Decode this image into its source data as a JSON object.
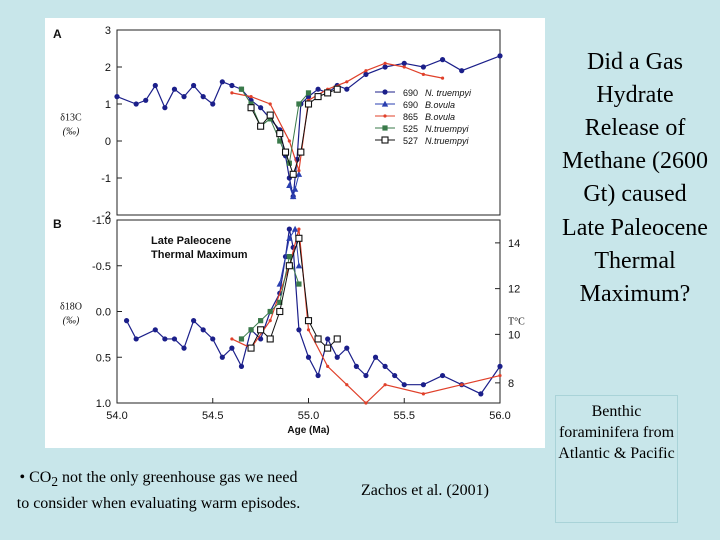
{
  "slide": {
    "title": "Did a Gas Hydrate Release of Methane (2600 Gt) caused Late Paleocene Thermal Maximum?",
    "bullet_prefix": "• CO",
    "bullet_sub": "2",
    "bullet_rest": " not the only greenhouse gas we need to consider when evaluating warm episodes.",
    "citation": "Zachos et al. (2001)",
    "benthic_note": "Benthic foraminifera from Atlantic & Pacific"
  },
  "colors": {
    "navy": "#1b1f8a",
    "blue_triangle": "#2a3fb0",
    "red": "#e0402a",
    "green": "#3a7a4a",
    "black": "#111111"
  },
  "chart_data": [
    {
      "type": "line",
      "panel": "A",
      "ylabel": "δ13C (‰)",
      "xlim": [
        54.0,
        56.0
      ],
      "ylim": [
        -2,
        3
      ],
      "y_ticks": [
        "3",
        "2",
        "1",
        "0",
        "-1",
        "-2"
      ],
      "legend": {
        "placement": "bottom-right",
        "entries": [
          {
            "site": "690",
            "species": "N. truempyi",
            "marker": "circle-filled",
            "color": "navy"
          },
          {
            "site": "690",
            "species": "B.ovula",
            "marker": "triangle-filled",
            "color": "blue_triangle"
          },
          {
            "site": "865",
            "species": "B.ovula",
            "marker": "dot-small",
            "color": "red"
          },
          {
            "site": "525",
            "species": "N.truempyi",
            "marker": "square-filled",
            "color": "green"
          },
          {
            "site": "527",
            "species": "N.truempyi",
            "marker": "square-open",
            "color": "black"
          }
        ]
      },
      "series": [
        {
          "name": "690 N. truempyi",
          "x": [
            54.0,
            54.1,
            54.15,
            54.2,
            54.25,
            54.3,
            54.35,
            54.4,
            54.45,
            54.5,
            54.55,
            54.6,
            54.65,
            54.7,
            54.75,
            54.8,
            54.85,
            54.88,
            54.9,
            54.92,
            54.94,
            54.96,
            55.0,
            55.05,
            55.1,
            55.15,
            55.2,
            55.3,
            55.4,
            55.5,
            55.6,
            55.7,
            55.8,
            56.0
          ],
          "y": [
            1.2,
            1.0,
            1.1,
            1.5,
            0.9,
            1.4,
            1.2,
            1.5,
            1.2,
            1.0,
            1.6,
            1.5,
            1.4,
            1.1,
            0.9,
            0.6,
            0.3,
            -0.4,
            -1.0,
            -1.5,
            -0.5,
            1.0,
            1.2,
            1.4,
            1.3,
            1.5,
            1.4,
            1.8,
            2.0,
            2.1,
            2.0,
            2.2,
            1.9,
            2.3
          ]
        },
        {
          "name": "690 B.ovula",
          "x": [
            54.9,
            54.92,
            54.93,
            54.95
          ],
          "y": [
            -1.2,
            -1.5,
            -1.3,
            -0.9
          ]
        },
        {
          "name": "865 B.ovula",
          "x": [
            54.6,
            54.7,
            54.8,
            54.9,
            54.95,
            55.0,
            55.1,
            55.2,
            55.3,
            55.4,
            55.5,
            55.6,
            55.7
          ],
          "y": [
            1.3,
            1.2,
            1.0,
            0.0,
            -0.8,
            1.1,
            1.4,
            1.6,
            1.9,
            2.1,
            2.0,
            1.8,
            1.7
          ]
        },
        {
          "name": "525 N.truempyi",
          "x": [
            54.65,
            54.7,
            54.75,
            54.8,
            54.85,
            54.9,
            54.95,
            55.0
          ],
          "y": [
            1.4,
            1.0,
            0.4,
            0.6,
            0.0,
            -0.6,
            1.0,
            1.3
          ]
        },
        {
          "name": "527 N.truempyi",
          "x": [
            54.7,
            54.75,
            54.8,
            54.85,
            54.88,
            54.92,
            54.96,
            55.0,
            55.05,
            55.1,
            55.15
          ],
          "y": [
            0.9,
            0.4,
            0.7,
            0.2,
            -0.3,
            -0.9,
            -0.3,
            1.0,
            1.2,
            1.3,
            1.4
          ]
        }
      ]
    },
    {
      "type": "line",
      "panel": "B",
      "ylabel": "δ18O (‰)",
      "y2label": "T°C",
      "annotation": "Late Paleocene Thermal Maximum",
      "xlabel": "Age (Ma)",
      "x_ticks": [
        "54.0",
        "54.5",
        "55.0",
        "55.5",
        "56.0"
      ],
      "xlim": [
        54.0,
        56.0
      ],
      "ylim": [
        -1.0,
        1.0
      ],
      "y_ticks": [
        "-1.0",
        "-0.5",
        "0.0",
        "0.5",
        "1.0"
      ],
      "y2_ticks": [
        "14",
        "12",
        "10",
        "8"
      ],
      "series": [
        {
          "name": "690 N. truempyi",
          "x": [
            54.05,
            54.1,
            54.2,
            54.25,
            54.3,
            54.35,
            54.4,
            54.45,
            54.5,
            54.55,
            54.6,
            54.65,
            54.7,
            54.75,
            54.8,
            54.85,
            54.88,
            54.9,
            54.92,
            54.95,
            55.0,
            55.05,
            55.1,
            55.15,
            55.2,
            55.25,
            55.3,
            55.35,
            55.4,
            55.45,
            55.5,
            55.6,
            55.7,
            55.8,
            55.9,
            56.0
          ],
          "y": [
            0.1,
            0.3,
            0.2,
            0.3,
            0.3,
            0.4,
            0.1,
            0.2,
            0.3,
            0.5,
            0.4,
            0.6,
            0.2,
            0.3,
            0.0,
            -0.2,
            -0.6,
            -0.9,
            -0.7,
            0.2,
            0.5,
            0.7,
            0.3,
            0.5,
            0.4,
            0.6,
            0.7,
            0.5,
            0.6,
            0.7,
            0.8,
            0.8,
            0.7,
            0.8,
            0.9,
            0.6
          ]
        },
        {
          "name": "690 B.ovula",
          "x": [
            54.85,
            54.9,
            54.93,
            54.95
          ],
          "y": [
            -0.3,
            -0.8,
            -0.9,
            -0.5
          ]
        },
        {
          "name": "865 B.ovula",
          "x": [
            54.6,
            54.7,
            54.8,
            54.9,
            54.95,
            55.0,
            55.1,
            55.2,
            55.3,
            55.4,
            55.6,
            55.8,
            56.0
          ],
          "y": [
            0.3,
            0.4,
            0.1,
            -0.5,
            -0.9,
            0.2,
            0.6,
            0.8,
            1.0,
            0.8,
            0.9,
            0.8,
            0.7
          ]
        },
        {
          "name": "525 N.truempyi",
          "x": [
            54.65,
            54.7,
            54.75,
            54.8,
            54.85,
            54.9,
            54.95
          ],
          "y": [
            0.3,
            0.2,
            0.1,
            0.0,
            -0.1,
            -0.6,
            -0.3
          ]
        },
        {
          "name": "527 N.truempyi",
          "x": [
            54.7,
            54.75,
            54.8,
            54.85,
            54.9,
            54.95,
            55.0,
            55.05,
            55.1,
            55.15
          ],
          "y": [
            0.4,
            0.2,
            0.3,
            0.0,
            -0.5,
            -0.8,
            0.1,
            0.3,
            0.4,
            0.3
          ]
        }
      ]
    }
  ]
}
